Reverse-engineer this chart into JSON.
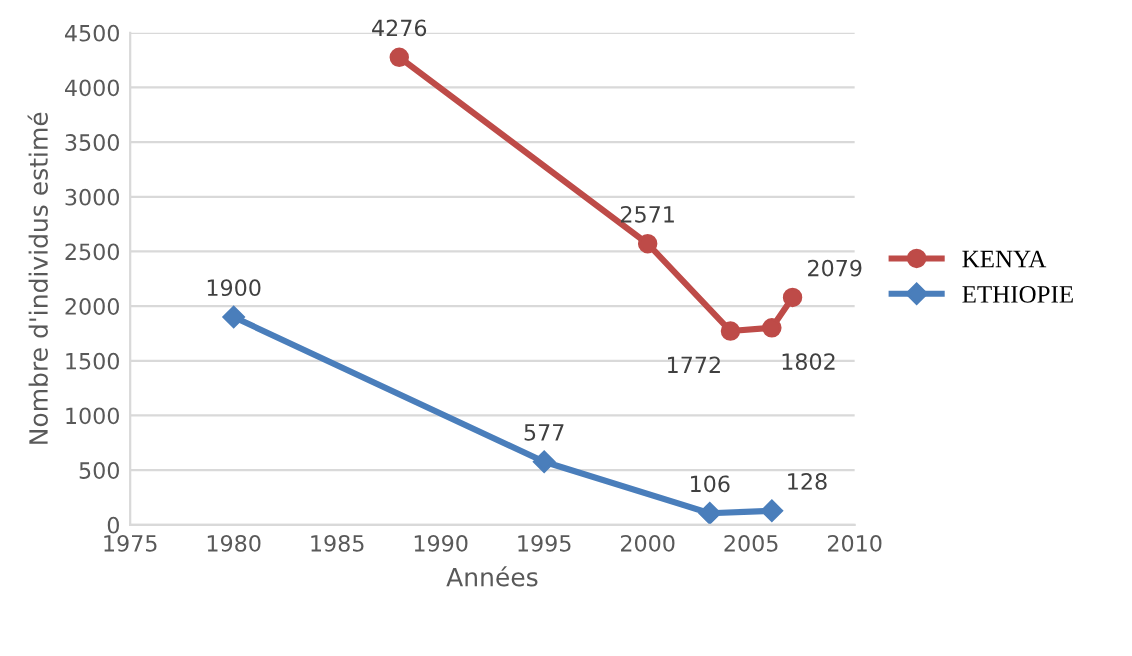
{
  "chart_data": {
    "type": "line",
    "xlabel": "Années",
    "ylabel": "Nombre d'individus estimé",
    "xlim": [
      1975,
      2010
    ],
    "xticks": [
      1975,
      1980,
      1985,
      1990,
      1995,
      2000,
      2005,
      2010
    ],
    "ylim": [
      0,
      4500
    ],
    "yticks": [
      0,
      500,
      1000,
      1500,
      2000,
      2500,
      3000,
      3500,
      4000,
      4500
    ],
    "grid": "y",
    "legend": "right",
    "data_labels": true,
    "series": [
      {
        "name": "KENYA",
        "color": "#be4b48",
        "marker": "circle",
        "x": [
          1988,
          2000,
          2004,
          2006,
          2007
        ],
        "values": [
          4276,
          2571,
          1772,
          1802,
          2079
        ]
      },
      {
        "name": "ETHIOPIE",
        "color": "#4a7ebb",
        "marker": "diamond",
        "x": [
          1980,
          1995,
          2003,
          2006
        ],
        "values": [
          1900,
          577,
          106,
          128
        ]
      }
    ]
  }
}
